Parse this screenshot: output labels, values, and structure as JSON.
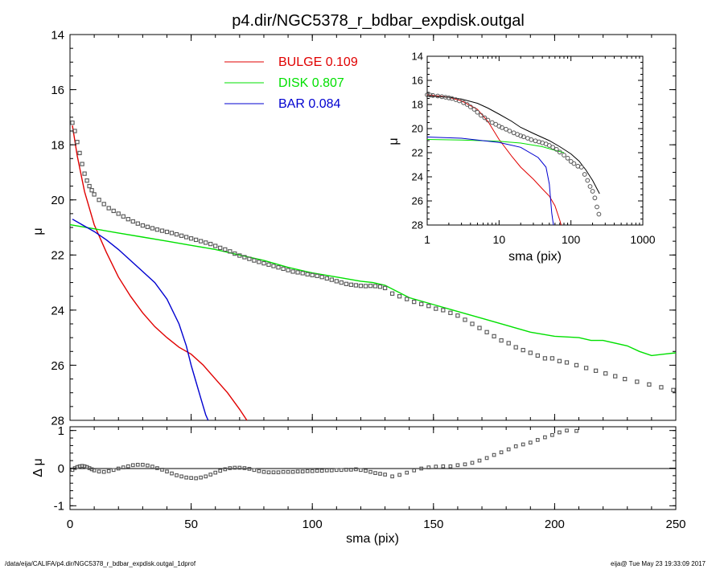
{
  "footer": {
    "path": "/data/eija/CALIFA/p4.dir/NGC5378_r_bdbar_expdisk.outgal_1dprof",
    "stamp": "eija@  Tue May 23 19:33:09 2017"
  },
  "colors": {
    "bulge": "#e00000",
    "disk": "#00e000",
    "bar": "#0000d0",
    "data": "#555555",
    "axis": "#000000"
  },
  "chart_data": [
    {
      "id": "main",
      "type": "line",
      "title": "p4.dir/NGC5378_r_bdbar_expdisk.outgal",
      "xlabel": "sma (pix)",
      "ylabel": "μ",
      "xlim": [
        0,
        250
      ],
      "ylim": [
        28,
        14
      ],
      "xticks": [
        0,
        50,
        100,
        150,
        200,
        250
      ],
      "yticks": [
        14,
        16,
        18,
        20,
        22,
        24,
        26,
        28
      ],
      "legend": [
        {
          "name": "BULGE",
          "value": "0.109",
          "color": "#e00000"
        },
        {
          "name": "DISK",
          "value": "0.807",
          "color": "#00e000"
        },
        {
          "name": "BAR",
          "value": "0.084",
          "color": "#0000d0"
        }
      ],
      "legend_position": "top-center",
      "series": [
        {
          "name": "BULGE",
          "color": "#e00000",
          "x": [
            1,
            3,
            6,
            10,
            15,
            20,
            25,
            30,
            35,
            40,
            45,
            50,
            55,
            60,
            65,
            70,
            73
          ],
          "y": [
            17.3,
            18.4,
            19.7,
            20.9,
            21.9,
            22.8,
            23.5,
            24.1,
            24.6,
            25.0,
            25.35,
            25.6,
            26.0,
            26.5,
            27.0,
            27.6,
            28.0
          ]
        },
        {
          "name": "DISK",
          "color": "#00e000",
          "x": [
            0,
            10,
            20,
            30,
            40,
            50,
            60,
            70,
            80,
            90,
            100,
            110,
            120,
            125,
            130,
            140,
            150,
            160,
            170,
            180,
            190,
            200,
            210,
            215,
            220,
            230,
            235,
            240,
            245,
            250
          ],
          "y": [
            20.9,
            21.05,
            21.2,
            21.35,
            21.5,
            21.65,
            21.8,
            22.0,
            22.2,
            22.45,
            22.65,
            22.8,
            22.95,
            23.0,
            23.1,
            23.55,
            23.8,
            24.05,
            24.3,
            24.55,
            24.8,
            24.95,
            25.0,
            25.1,
            25.1,
            25.3,
            25.5,
            25.65,
            25.6,
            25.55
          ]
        },
        {
          "name": "BAR",
          "color": "#0000d0",
          "x": [
            1,
            5,
            10,
            15,
            20,
            25,
            30,
            35,
            40,
            45,
            48,
            50,
            52,
            54,
            56,
            57
          ],
          "y": [
            20.7,
            20.9,
            21.15,
            21.45,
            21.8,
            22.2,
            22.6,
            23.0,
            23.6,
            24.5,
            25.3,
            26.0,
            26.6,
            27.2,
            27.8,
            28.0
          ]
        }
      ],
      "points": {
        "x": [
          1,
          2,
          3,
          4,
          5,
          6,
          7,
          8,
          9,
          10,
          12,
          14,
          16,
          18,
          20,
          22,
          24,
          26,
          28,
          30,
          32,
          34,
          36,
          38,
          40,
          42,
          44,
          46,
          48,
          50,
          52,
          54,
          56,
          58,
          60,
          62,
          64,
          66,
          68,
          70,
          72,
          74,
          76,
          78,
          80,
          82,
          84,
          86,
          88,
          90,
          92,
          94,
          96,
          98,
          100,
          102,
          104,
          106,
          108,
          110,
          112,
          114,
          116,
          118,
          120,
          122,
          124,
          126,
          128,
          130,
          133,
          136,
          139,
          142,
          145,
          148,
          151,
          154,
          157,
          160,
          163,
          166,
          169,
          172,
          175,
          178,
          181,
          184,
          187,
          190,
          193,
          196,
          199,
          202,
          205,
          209,
          213,
          217,
          221,
          225,
          229,
          234,
          239,
          244,
          249
        ],
        "y": [
          17.2,
          17.5,
          17.9,
          18.3,
          18.7,
          19.05,
          19.3,
          19.5,
          19.65,
          19.8,
          20.0,
          20.15,
          20.3,
          20.4,
          20.5,
          20.6,
          20.7,
          20.78,
          20.86,
          20.93,
          20.98,
          21.03,
          21.08,
          21.12,
          21.16,
          21.2,
          21.25,
          21.3,
          21.35,
          21.4,
          21.45,
          21.5,
          21.55,
          21.6,
          21.67,
          21.74,
          21.8,
          21.87,
          21.95,
          22.02,
          22.08,
          22.14,
          22.2,
          22.25,
          22.3,
          22.35,
          22.4,
          22.45,
          22.5,
          22.55,
          22.6,
          22.63,
          22.66,
          22.7,
          22.73,
          22.76,
          22.8,
          22.85,
          22.9,
          22.95,
          23.0,
          23.05,
          23.08,
          23.1,
          23.12,
          23.13,
          23.12,
          23.13,
          23.15,
          23.2,
          23.4,
          23.5,
          23.6,
          23.7,
          23.78,
          23.85,
          23.95,
          24.0,
          24.1,
          24.2,
          24.35,
          24.5,
          24.65,
          24.8,
          24.95,
          25.1,
          25.2,
          25.35,
          25.45,
          25.55,
          25.65,
          25.75,
          25.75,
          25.85,
          25.9,
          26.0,
          26.1,
          26.2,
          26.3,
          26.4,
          26.5,
          26.6,
          26.7,
          26.8,
          26.9
        ]
      }
    },
    {
      "id": "residual",
      "type": "scatter",
      "xlabel": "sma (pix)",
      "ylabel": "Δ μ",
      "xlim": [
        0,
        250
      ],
      "ylim": [
        -1.1,
        1.1
      ],
      "xticks": [
        0,
        50,
        100,
        150,
        200,
        250
      ],
      "yticks": [
        -1,
        0,
        1
      ],
      "points": {
        "x": [
          1,
          2,
          3,
          4,
          5,
          6,
          7,
          8,
          9,
          10,
          12,
          14,
          16,
          18,
          20,
          22,
          24,
          26,
          28,
          30,
          32,
          34,
          36,
          38,
          40,
          42,
          44,
          46,
          48,
          50,
          52,
          54,
          56,
          58,
          60,
          62,
          64,
          66,
          68,
          70,
          72,
          74,
          76,
          78,
          80,
          82,
          84,
          86,
          88,
          90,
          92,
          94,
          96,
          98,
          100,
          102,
          104,
          106,
          108,
          110,
          112,
          114,
          116,
          118,
          120,
          122,
          124,
          126,
          128,
          130,
          133,
          136,
          139,
          142,
          145,
          148,
          151,
          154,
          157,
          160,
          163,
          166,
          169,
          172,
          175,
          178,
          181,
          184,
          187,
          190,
          193,
          196,
          199,
          202,
          205,
          209
        ],
        "y": [
          -0.05,
          0.0,
          0.03,
          0.05,
          0.06,
          0.05,
          0.03,
          0.0,
          -0.03,
          -0.06,
          -0.09,
          -0.1,
          -0.08,
          -0.05,
          -0.01,
          0.02,
          0.05,
          0.08,
          0.09,
          0.09,
          0.07,
          0.04,
          0.0,
          -0.04,
          -0.09,
          -0.14,
          -0.19,
          -0.22,
          -0.25,
          -0.26,
          -0.27,
          -0.25,
          -0.22,
          -0.17,
          -0.12,
          -0.07,
          -0.03,
          0.0,
          0.01,
          0.01,
          0.0,
          -0.02,
          -0.05,
          -0.08,
          -0.1,
          -0.11,
          -0.11,
          -0.11,
          -0.1,
          -0.1,
          -0.1,
          -0.09,
          -0.09,
          -0.08,
          -0.08,
          -0.07,
          -0.07,
          -0.06,
          -0.06,
          -0.05,
          -0.05,
          -0.04,
          -0.04,
          -0.03,
          -0.05,
          -0.07,
          -0.1,
          -0.13,
          -0.15,
          -0.17,
          -0.22,
          -0.18,
          -0.12,
          -0.06,
          -0.01,
          0.02,
          0.04,
          0.05,
          0.05,
          0.08,
          0.1,
          0.14,
          0.2,
          0.27,
          0.35,
          0.42,
          0.5,
          0.58,
          0.63,
          0.68,
          0.75,
          0.82,
          0.88,
          0.95,
          1.0,
          0.99
        ]
      }
    },
    {
      "id": "inset",
      "type": "line",
      "xlabel": "sma (pix)",
      "ylabel": "μ",
      "xscale": "log",
      "xlim": [
        1,
        1000
      ],
      "ylim": [
        28,
        14
      ],
      "xticks": [
        1,
        10,
        100,
        1000
      ],
      "yticks": [
        14,
        16,
        18,
        20,
        22,
        24,
        26,
        28
      ],
      "series": [
        {
          "name": "BULGE",
          "color": "#e00000",
          "x": [
            1,
            2,
            3,
            5,
            7,
            10,
            15,
            20,
            30,
            40,
            50,
            60,
            70,
            73
          ],
          "y": [
            17.2,
            17.4,
            17.7,
            18.4,
            19.4,
            20.9,
            22.3,
            23.2,
            24.2,
            25.0,
            25.6,
            26.4,
            27.6,
            28.0
          ]
        },
        {
          "name": "DISK",
          "color": "#00e000",
          "x": [
            1,
            3,
            10,
            20,
            40,
            60,
            80
          ],
          "y": [
            20.9,
            20.95,
            21.05,
            21.2,
            21.5,
            21.8,
            22.0
          ]
        },
        {
          "name": "BAR",
          "color": "#0000d0",
          "x": [
            1,
            3,
            10,
            20,
            35,
            45,
            50,
            52,
            54,
            57
          ],
          "y": [
            20.7,
            20.8,
            21.15,
            21.55,
            22.4,
            23.2,
            24.6,
            25.8,
            27.0,
            28.0
          ]
        },
        {
          "name": "model",
          "color": "#000000",
          "x": [
            1,
            2,
            3,
            5,
            7,
            10,
            15,
            20,
            30,
            50,
            70,
            100,
            130,
            160,
            200,
            250
          ],
          "y": [
            17.3,
            17.4,
            17.55,
            17.9,
            18.3,
            18.8,
            19.4,
            19.9,
            20.4,
            21.0,
            21.5,
            22.1,
            22.7,
            23.4,
            24.3,
            25.4
          ]
        }
      ],
      "points": {
        "x": [
          1,
          1.1,
          1.2,
          1.4,
          1.6,
          1.8,
          2,
          2.2,
          2.5,
          2.8,
          3.2,
          3.6,
          4,
          4.5,
          5,
          5.6,
          6.3,
          7,
          8,
          9,
          10,
          11,
          12.5,
          14,
          16,
          18,
          20,
          22,
          25,
          28,
          32,
          36,
          40,
          45,
          50,
          56,
          63,
          70,
          80,
          90,
          100,
          110,
          125,
          140,
          155,
          170,
          185,
          200,
          215,
          230,
          245
        ],
        "y": [
          17.2,
          17.22,
          17.25,
          17.3,
          17.35,
          17.4,
          17.45,
          17.5,
          17.6,
          17.7,
          17.85,
          18.0,
          18.2,
          18.4,
          18.65,
          18.9,
          19.1,
          19.3,
          19.5,
          19.65,
          19.8,
          19.92,
          20.05,
          20.2,
          20.35,
          20.48,
          20.6,
          20.68,
          20.8,
          20.92,
          21.02,
          21.1,
          21.18,
          21.27,
          21.4,
          21.55,
          21.72,
          21.95,
          22.2,
          22.45,
          22.73,
          22.9,
          23.12,
          23.2,
          23.8,
          24.3,
          24.8,
          25.2,
          25.75,
          26.5,
          27.1
        ]
      }
    }
  ]
}
